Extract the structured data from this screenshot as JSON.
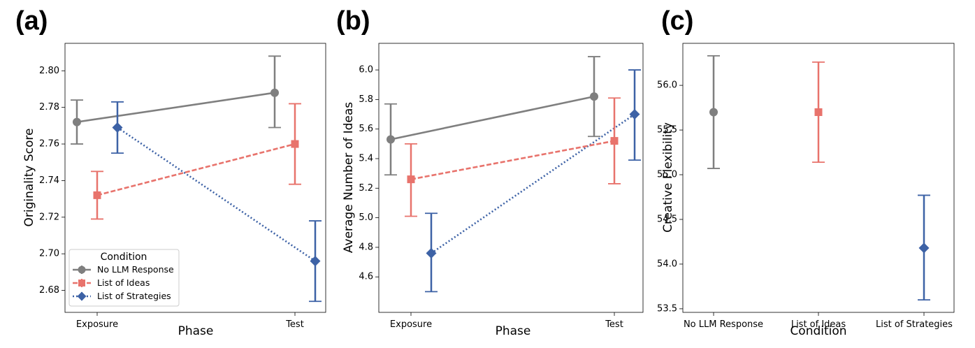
{
  "colors": {
    "No LLM Response": "#7f7f7f",
    "List of Ideas": "#e8736c",
    "List of Strategies": "#3d62a6"
  },
  "legend": {
    "title": "Condition",
    "entries": [
      "No LLM Response",
      "List of Ideas",
      "List of Strategies"
    ]
  },
  "chart_data": [
    {
      "panel_label": "(a)",
      "type": "line",
      "categories": [
        "Exposure",
        "Test"
      ],
      "xlabel": "Phase",
      "ylabel": "Originality Score",
      "ylim": [
        2.668,
        2.815
      ],
      "yticks": [
        "2.68",
        "2.70",
        "2.72",
        "2.74",
        "2.76",
        "2.78",
        "2.80"
      ],
      "legend_position": "lower-left",
      "series": [
        {
          "name": "No LLM Response",
          "marker": "circle",
          "dash": "solid",
          "values": [
            2.772,
            2.788
          ],
          "err_low": [
            2.76,
            2.769
          ],
          "err_high": [
            2.784,
            2.808
          ]
        },
        {
          "name": "List of Ideas",
          "marker": "square",
          "dash": "dashed",
          "values": [
            2.732,
            2.76
          ],
          "err_low": [
            2.719,
            2.738
          ],
          "err_high": [
            2.745,
            2.782
          ]
        },
        {
          "name": "List of Strategies",
          "marker": "diamond",
          "dash": "dotted",
          "values": [
            2.769,
            2.696
          ],
          "err_low": [
            2.755,
            2.674
          ],
          "err_high": [
            2.783,
            2.718
          ]
        }
      ]
    },
    {
      "panel_label": "(b)",
      "type": "line",
      "categories": [
        "Exposure",
        "Test"
      ],
      "xlabel": "Phase",
      "ylabel": "Average Number of Ideas",
      "ylim": [
        4.36,
        6.18
      ],
      "yticks": [
        "4.6",
        "4.8",
        "5.0",
        "5.2",
        "5.4",
        "5.6",
        "5.8",
        "6.0"
      ],
      "series": [
        {
          "name": "No LLM Response",
          "marker": "circle",
          "dash": "solid",
          "values": [
            5.53,
            5.82
          ],
          "err_low": [
            5.29,
            5.55
          ],
          "err_high": [
            5.77,
            6.09
          ]
        },
        {
          "name": "List of Ideas",
          "marker": "square",
          "dash": "dashed",
          "values": [
            5.26,
            5.52
          ],
          "err_low": [
            5.01,
            5.23
          ],
          "err_high": [
            5.5,
            5.81
          ]
        },
        {
          "name": "List of Strategies",
          "marker": "diamond",
          "dash": "dotted",
          "values": [
            4.76,
            5.7
          ],
          "err_low": [
            4.5,
            5.39
          ],
          "err_high": [
            5.03,
            6.0
          ]
        }
      ]
    },
    {
      "panel_label": "(c)",
      "type": "scatter",
      "categories": [
        "No LLM Response",
        "List of Ideas",
        "List of Strategies"
      ],
      "xlabel": "Condition",
      "ylabel": "Creative Flexibility",
      "ylim": [
        53.46,
        56.47
      ],
      "yticks": [
        "53.5",
        "54.0",
        "54.5",
        "55.0",
        "55.5",
        "56.0"
      ],
      "points": [
        {
          "name": "No LLM Response",
          "marker": "circle",
          "value": 55.7,
          "err_low": 55.07,
          "err_high": 56.33
        },
        {
          "name": "List of Ideas",
          "marker": "square",
          "value": 55.7,
          "err_low": 55.14,
          "err_high": 56.26
        },
        {
          "name": "List of Strategies",
          "marker": "diamond",
          "value": 54.18,
          "err_low": 53.6,
          "err_high": 54.77
        }
      ]
    }
  ]
}
